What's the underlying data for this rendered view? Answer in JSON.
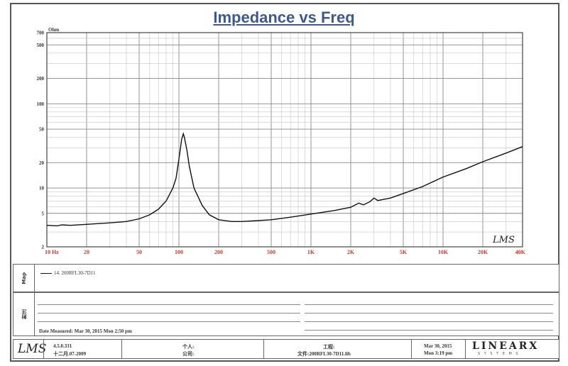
{
  "chart_data": {
    "type": "line",
    "title": "Impedance vs Freq",
    "ylabel": "Ohm",
    "x_scale": "log",
    "y_scale": "log",
    "xlim": [
      10,
      40000
    ],
    "ylim": [
      2,
      700
    ],
    "x_ticks": [
      "10 Hz",
      "20",
      "50",
      "100",
      "200",
      "500",
      "1K",
      "2K",
      "5K",
      "10K",
      "20K",
      "40K"
    ],
    "y_ticks": [
      "700",
      "500",
      "200",
      "100",
      "50",
      "20",
      "10",
      "5",
      "2"
    ],
    "grid": true,
    "watermark": "LMS",
    "series": [
      {
        "name": "14. 200RFL30-7D11",
        "x": [
          10,
          12,
          13,
          15,
          20,
          30,
          40,
          50,
          60,
          70,
          80,
          90,
          95,
          100,
          105,
          108,
          110,
          115,
          120,
          130,
          150,
          170,
          200,
          250,
          300,
          400,
          500,
          700,
          1000,
          1500,
          2000,
          2300,
          2500,
          2800,
          3000,
          3200,
          3500,
          4000,
          5000,
          7000,
          10000,
          15000,
          20000,
          30000,
          40000
        ],
        "y": [
          3.6,
          3.55,
          3.65,
          3.6,
          3.7,
          3.85,
          4.0,
          4.3,
          4.8,
          5.6,
          7.0,
          10.0,
          13.0,
          22.0,
          38.0,
          44.0,
          40.0,
          28.0,
          18.0,
          10.0,
          6.2,
          4.8,
          4.2,
          4.0,
          4.0,
          4.1,
          4.2,
          4.5,
          4.9,
          5.4,
          5.9,
          6.6,
          6.3,
          6.9,
          7.6,
          7.1,
          7.3,
          7.6,
          8.6,
          10.4,
          13.5,
          17.0,
          20.5,
          26.0,
          31.0
        ]
      }
    ]
  },
  "legend_panel": {
    "side_label": "Map",
    "entry": "14. 200RFL30-7D11"
  },
  "notes_panel": {
    "side_label": "附注",
    "date_measured": "Date Measured: Mar 30, 2015  Mon  2:50 pm"
  },
  "footer": {
    "logo": "LMS",
    "version": "4.5.0.331",
    "build_date": "十二月.07-2009",
    "person_label": "个人:",
    "company_label": "公司:",
    "project_label": "工程:",
    "file_label": "文件:200RFL30-7D11.lib",
    "date": "Mar 30, 2015",
    "time": "Mon  3:19 pm",
    "brand": "LINEARX",
    "brand_sub": "S Y S T E M S"
  }
}
